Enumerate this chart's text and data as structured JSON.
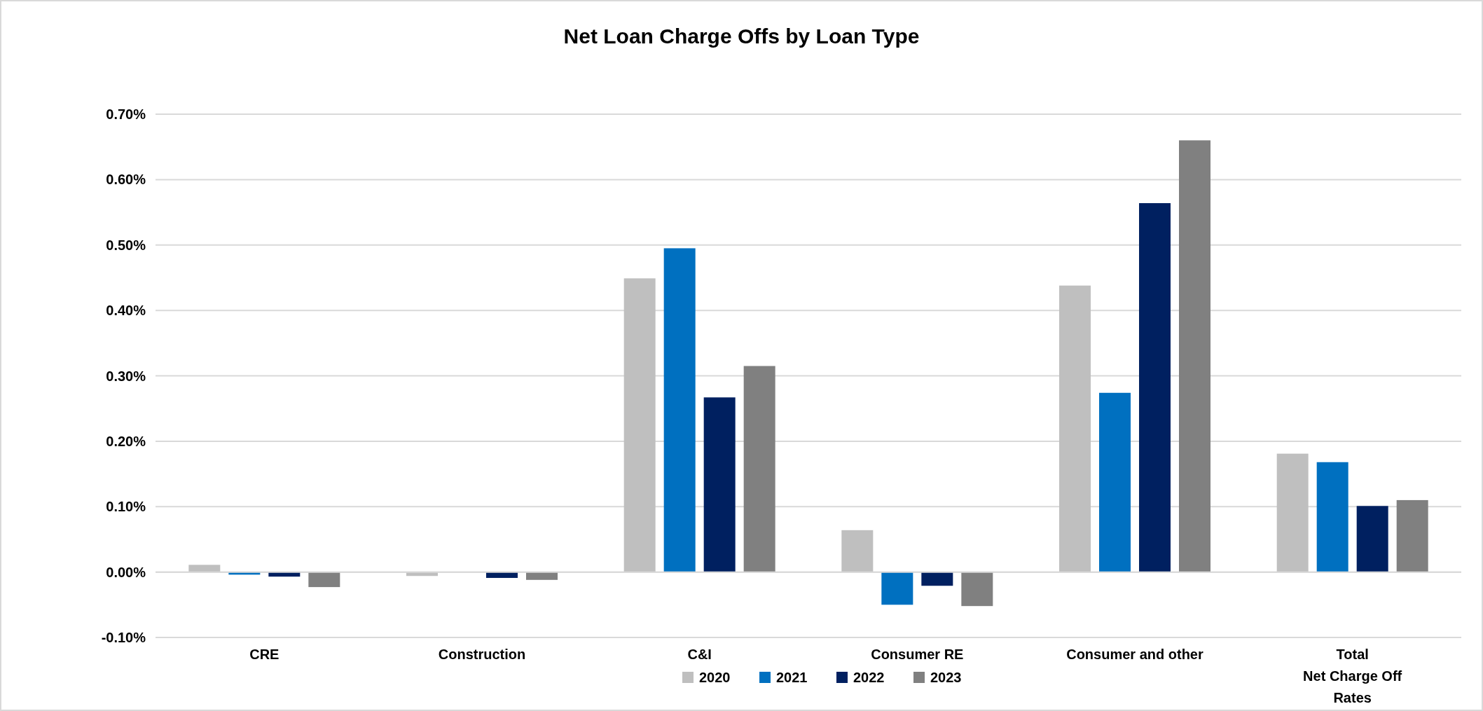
{
  "chart_data": {
    "type": "bar",
    "title": "Net Loan Charge Offs by Loan Type",
    "categories": [
      "CRE",
      "Construction",
      "C&I",
      "Consumer RE",
      "Consumer and other",
      "Total\nNet Charge Off\nRates"
    ],
    "series": [
      {
        "name": "2020",
        "color": "#bfbfbf",
        "values": [
          0.011,
          -0.006,
          0.449,
          0.064,
          0.438,
          0.181
        ]
      },
      {
        "name": "2021",
        "color": "#0070c0",
        "values": [
          -0.004,
          0,
          0.495,
          -0.05,
          0.274,
          0.168
        ]
      },
      {
        "name": "2022",
        "color": "#002060",
        "values": [
          -0.007,
          -0.009,
          0.267,
          -0.021,
          0.564,
          0.101
        ]
      },
      {
        "name": "2023",
        "color": "#808080",
        "values": [
          -0.023,
          -0.012,
          0.315,
          -0.052,
          0.66,
          0.11
        ]
      }
    ],
    "ylim": [
      -0.1,
      0.7
    ],
    "yticks": [
      {
        "value": -0.1,
        "label": "-0.10%"
      },
      {
        "value": 0,
        "label": "0.00%"
      },
      {
        "value": 0.1,
        "label": "0.10%"
      },
      {
        "value": 0.2,
        "label": "0.20%"
      },
      {
        "value": 0.3,
        "label": "0.30%"
      },
      {
        "value": 0.4,
        "label": "0.40%"
      },
      {
        "value": 0.5,
        "label": "0.50%"
      },
      {
        "value": 0.6,
        "label": "0.60%"
      },
      {
        "value": 0.7,
        "label": "0.70%"
      }
    ],
    "grid": "y",
    "legend": "bottom"
  }
}
